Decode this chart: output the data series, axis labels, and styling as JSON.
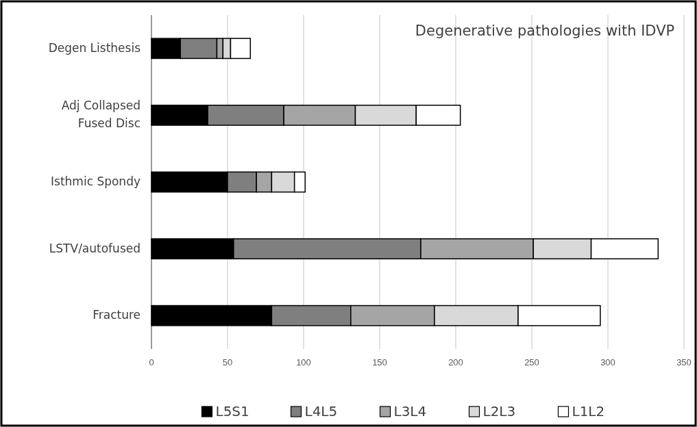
{
  "chart_data": {
    "type": "bar",
    "orientation": "horizontal",
    "stacked": true,
    "title": "Degenerative pathologies with IDVP",
    "categories": [
      "Degen Listhesis",
      "Adj Collapsed Fused Disc",
      "Isthmic Spondy",
      "LSTV/autofused",
      "Fracture"
    ],
    "series": [
      {
        "name": "L5S1",
        "color": "#000000",
        "values": [
          19,
          37,
          50,
          54,
          79
        ]
      },
      {
        "name": "L4L5",
        "color": "#7f7f7f",
        "values": [
          24,
          50,
          19,
          123,
          52
        ]
      },
      {
        "name": "L3L4",
        "color": "#a5a5a5",
        "values": [
          4,
          47,
          10,
          74,
          55
        ]
      },
      {
        "name": "L2L3",
        "color": "#d9d9d9",
        "values": [
          5,
          40,
          15,
          38,
          55
        ]
      },
      {
        "name": "L1L2",
        "color": "#ffffff",
        "values": [
          13,
          29,
          7,
          44,
          54
        ]
      }
    ],
    "xlim": [
      0,
      350
    ],
    "xticks": [
      0,
      50,
      100,
      150,
      200,
      250,
      300,
      350
    ],
    "grid": "x",
    "legend": "bottom"
  }
}
